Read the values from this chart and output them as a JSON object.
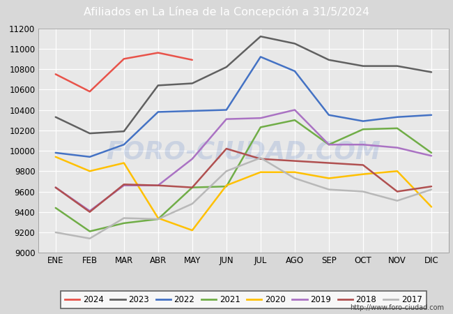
{
  "title": "Afiliados en La Línea de la Concepción a 31/5/2024",
  "title_bg_color": "#4e86c8",
  "title_text_color": "white",
  "months": [
    "ENE",
    "FEB",
    "MAR",
    "ABR",
    "MAY",
    "JUN",
    "JUL",
    "AGO",
    "SEP",
    "OCT",
    "NOV",
    "DIC"
  ],
  "ylim": [
    9000,
    11200
  ],
  "yticks": [
    9000,
    9200,
    9400,
    9600,
    9800,
    10000,
    10200,
    10400,
    10600,
    10800,
    11000,
    11200
  ],
  "watermark": "FORO-CIUDAD.COM",
  "url": "http://www.foro-ciudad.com",
  "series": {
    "2024": {
      "color": "#e8534a",
      "data": [
        10750,
        10580,
        10900,
        10960,
        10890,
        null,
        null,
        null,
        null,
        null,
        null,
        null
      ]
    },
    "2023": {
      "color": "#606060",
      "data": [
        10330,
        10170,
        10190,
        10640,
        10660,
        10820,
        11120,
        11050,
        10890,
        10830,
        10830,
        10770
      ]
    },
    "2022": {
      "color": "#4472c4",
      "data": [
        9980,
        9940,
        10060,
        10380,
        10390,
        10400,
        10920,
        10780,
        10350,
        10290,
        10330,
        10350
      ]
    },
    "2021": {
      "color": "#70ad47",
      "data": [
        9440,
        9210,
        9290,
        9330,
        9640,
        9650,
        10230,
        10300,
        10060,
        10210,
        10220,
        9980
      ]
    },
    "2020": {
      "color": "#ffc000",
      "data": [
        9940,
        9800,
        9880,
        9340,
        9220,
        9660,
        9790,
        9790,
        9730,
        9770,
        9800,
        9450
      ]
    },
    "2019": {
      "color": "#aa72c3",
      "data": [
        9640,
        9410,
        9660,
        9660,
        9920,
        10310,
        10320,
        10400,
        10060,
        10060,
        10030,
        9950
      ]
    },
    "2018": {
      "color": "#b05050",
      "data": [
        9640,
        9400,
        9670,
        9660,
        9640,
        10020,
        9920,
        9900,
        9880,
        9860,
        9600,
        9650
      ]
    },
    "2017": {
      "color": "#b8b8b8",
      "data": [
        9200,
        9140,
        9340,
        9330,
        9480,
        9800,
        9930,
        9730,
        9620,
        9600,
        9510,
        9620
      ]
    }
  },
  "legend_order": [
    "2024",
    "2023",
    "2022",
    "2021",
    "2020",
    "2019",
    "2018",
    "2017"
  ],
  "fig_bg_color": "#d8d8d8",
  "plot_bg_color": "#e8e8e8",
  "grid_color": "#ffffff"
}
